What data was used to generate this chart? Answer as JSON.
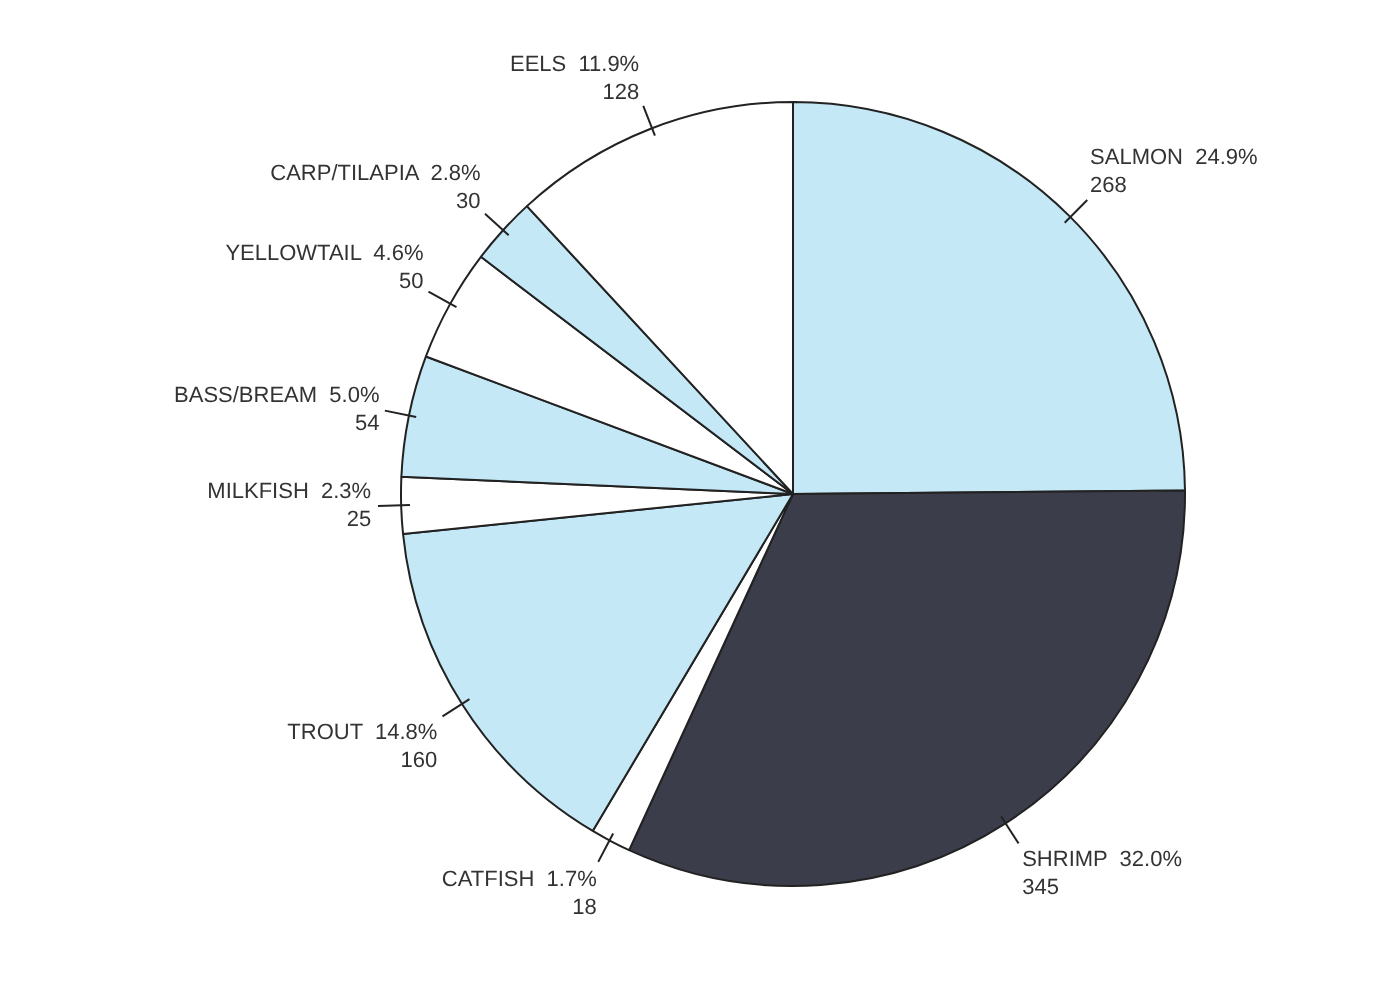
{
  "chart_data": {
    "type": "pie",
    "categories": [
      "SALMON  24.9%",
      "SHRIMP  32.0%",
      "CATFISH  1.7%",
      "TROUT  14.8%",
      "MILKFISH  2.3%",
      "BASS/BREAM  5.0%",
      "YELLOWTAIL  4.6%",
      "CARP/TILAPIA  2.8%",
      "EELS  11.9%"
    ],
    "values": [
      268,
      345,
      18,
      160,
      25,
      54,
      50,
      30,
      128
    ],
    "data_labels": true,
    "colors": [
      "#c4e8f6",
      "#3b3e4a",
      "#ffffff",
      "#c4e8f6",
      "#ffffff",
      "#c4e8f6",
      "#ffffff",
      "#c4e8f6",
      "#ffffff"
    ]
  }
}
